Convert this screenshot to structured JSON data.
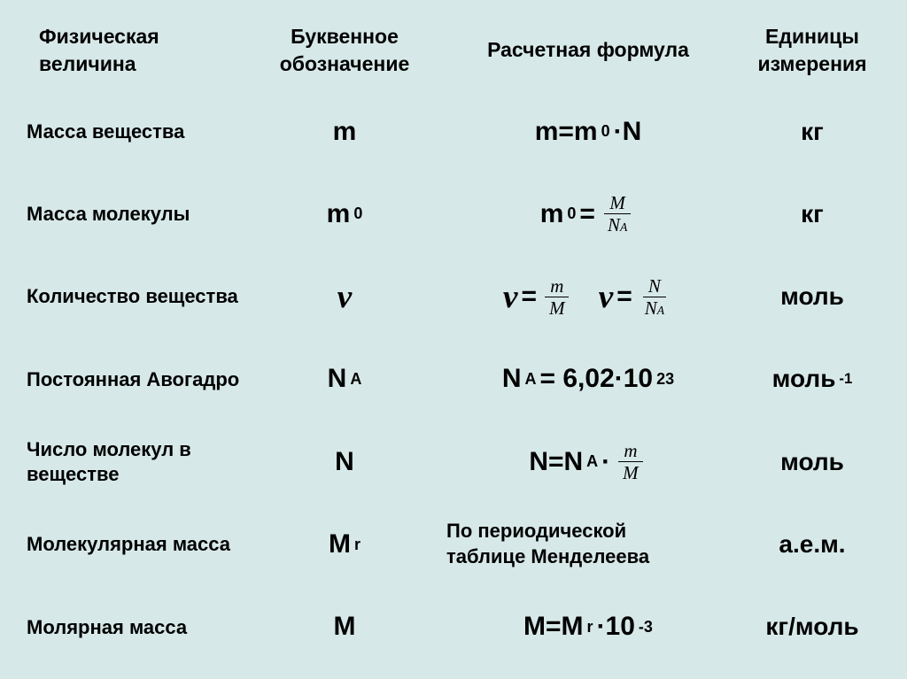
{
  "background_color": "#d7e8e8",
  "text_color": "#000000",
  "header": {
    "col1": "Физическая величина",
    "col2": "Буквенное обозначение",
    "col3": "Расчетная формула",
    "col4": "Единицы измерения"
  },
  "rows": {
    "mass_substance": {
      "label": "Масса вещества",
      "symbol_base": "m",
      "formula_lhs": "m=m",
      "formula_sub": "0",
      "formula_rhs": "·N",
      "unit": "кг"
    },
    "mass_molecule": {
      "label": "Масса молекулы",
      "symbol_base": "m",
      "symbol_sub": "0",
      "formula_lhs_base": "m",
      "formula_lhs_sub": "0",
      "formula_lhs_eq": "=",
      "frac_top": "M",
      "frac_bot_base": "N",
      "frac_bot_sub": "A",
      "unit": "кг"
    },
    "amount": {
      "label": "Количество вещества",
      "nu": "ν",
      "eq": "=",
      "frac1_top": "m",
      "frac1_bot": "M",
      "frac2_top": "N",
      "frac2_bot_base": "N",
      "frac2_bot_sub": "A",
      "unit": "моль"
    },
    "avogadro": {
      "label": "Постоянная Авогадро",
      "symbol_base": "N",
      "symbol_sub": "A",
      "formula_lhs_base": "N",
      "formula_lhs_sub": "A",
      "formula_rhs": "= 6,02·10",
      "formula_sup": "23",
      "unit_base": "моль",
      "unit_sup": "-1"
    },
    "num_molecules": {
      "label": "Число молекул в веществе",
      "symbol": "N",
      "formula_lhs": "N=N",
      "formula_sub": "A",
      "formula_mid": "·",
      "frac_top": "m",
      "frac_bot": "M",
      "unit": "моль"
    },
    "molecular_mass": {
      "label": "Молекулярная масса",
      "symbol_base": "M",
      "symbol_sub": "r",
      "formula_line1": "По периодической",
      "formula_line2": "таблице Менделеева",
      "unit": "а.е.м."
    },
    "molar_mass": {
      "label": "Молярная масса",
      "symbol": "M",
      "formula_lhs": "M=M",
      "formula_sub": "r",
      "formula_mid": "·10",
      "formula_sup": "-3",
      "unit": "кг/моль"
    }
  }
}
